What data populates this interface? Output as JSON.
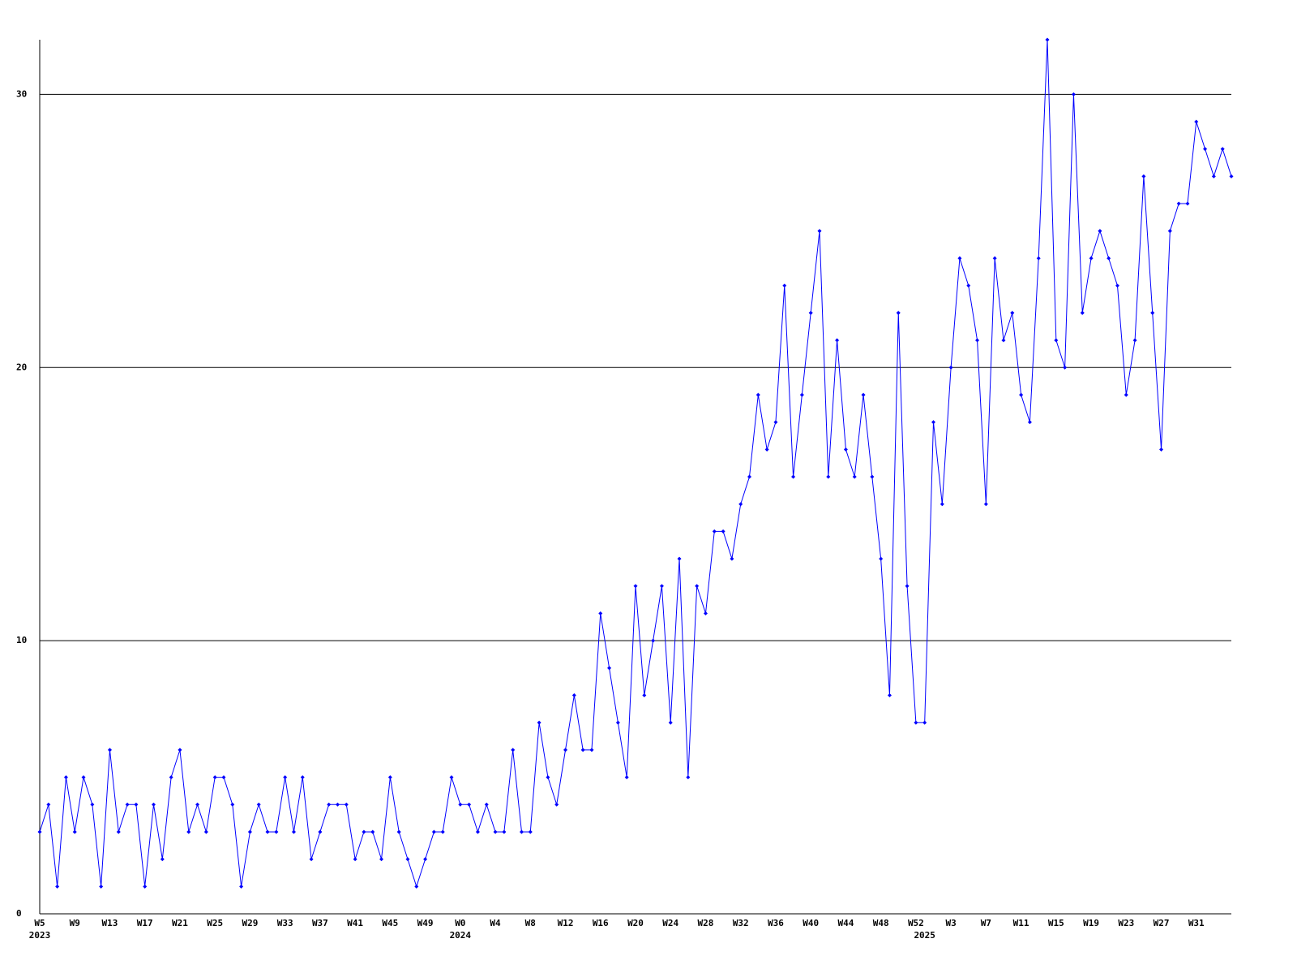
{
  "chart_data": {
    "type": "line",
    "categories": [
      "W5",
      null,
      null,
      null,
      "W9",
      null,
      null,
      null,
      "W13",
      null,
      null,
      null,
      "W17",
      null,
      null,
      null,
      "W21",
      null,
      null,
      null,
      "W25",
      null,
      null,
      null,
      "W29",
      null,
      null,
      null,
      "W33",
      null,
      null,
      null,
      "W37",
      null,
      null,
      null,
      "W41",
      null,
      null,
      null,
      "W45",
      null,
      null,
      null,
      "W49",
      null,
      null,
      null,
      "W0",
      null,
      null,
      null,
      "W4",
      null,
      null,
      null,
      "W8",
      null,
      null,
      null,
      "W12",
      null,
      null,
      null,
      "W16",
      null,
      null,
      null,
      "W20",
      null,
      null,
      null,
      "W24",
      null,
      null,
      null,
      "W28",
      null,
      null,
      null,
      "W32",
      null,
      null,
      null,
      "W36",
      null,
      null,
      null,
      "W40",
      null,
      null,
      null,
      "W44",
      null,
      null,
      null,
      "W48",
      null,
      null,
      null,
      "W52",
      null,
      null,
      null,
      "W3",
      null,
      null,
      null,
      "W7",
      null,
      null,
      null,
      "W11",
      null,
      null,
      null,
      "W15",
      null,
      null,
      null,
      "W19",
      null,
      null,
      null,
      "W23",
      null,
      null,
      null,
      "W27",
      null,
      null,
      null,
      "W31",
      null,
      null,
      null,
      null
    ],
    "year_labels": [
      "2023",
      null,
      null,
      null,
      null,
      null,
      null,
      null,
      null,
      null,
      null,
      null,
      null,
      null,
      null,
      null,
      null,
      null,
      null,
      null,
      null,
      null,
      null,
      null,
      null,
      null,
      null,
      null,
      null,
      null,
      null,
      null,
      null,
      null,
      null,
      null,
      null,
      null,
      null,
      null,
      null,
      null,
      null,
      null,
      null,
      null,
      null,
      null,
      "2024",
      null,
      null,
      null,
      null,
      null,
      null,
      null,
      null,
      null,
      null,
      null,
      null,
      null,
      null,
      null,
      null,
      null,
      null,
      null,
      null,
      null,
      null,
      null,
      null,
      null,
      null,
      null,
      null,
      null,
      null,
      null,
      null,
      null,
      null,
      null,
      null,
      null,
      null,
      null,
      null,
      null,
      null,
      null,
      null,
      null,
      null,
      null,
      null,
      null,
      null,
      null,
      null,
      "2025",
      null,
      null,
      null,
      null,
      null,
      null,
      null,
      null,
      null,
      null,
      null,
      null,
      null,
      null,
      null,
      null,
      null,
      null,
      null,
      null,
      null,
      null,
      null,
      null,
      null,
      null,
      null,
      null,
      null,
      null,
      null,
      null,
      null,
      null,
      null
    ],
    "series": [
      {
        "color": "#0000ff",
        "values": [
          3,
          4,
          1,
          5,
          3,
          5,
          4,
          1,
          6,
          3,
          4,
          4,
          1,
          4,
          2,
          5,
          6,
          3,
          4,
          3,
          5,
          5,
          4,
          1,
          3,
          4,
          3,
          3,
          5,
          3,
          5,
          2,
          3,
          4,
          4,
          4,
          2,
          3,
          3,
          2,
          5,
          3,
          2,
          1,
          2,
          3,
          3,
          5,
          4,
          4,
          3,
          4,
          3,
          3,
          6,
          3,
          3,
          7,
          5,
          4,
          6,
          8,
          6,
          6,
          11,
          9,
          7,
          5,
          12,
          8,
          10,
          12,
          7,
          13,
          5,
          12,
          11,
          14,
          14,
          13,
          15,
          16,
          19,
          17,
          18,
          23,
          16,
          19,
          22,
          25,
          16,
          21,
          17,
          16,
          19,
          16,
          13,
          8,
          22,
          12,
          7,
          7,
          18,
          15,
          20,
          24,
          23,
          21,
          15,
          24,
          21,
          22,
          19,
          18,
          24,
          32,
          21,
          20,
          30,
          22,
          24,
          25,
          24,
          23,
          19,
          21,
          27,
          22,
          17,
          25,
          26,
          26,
          29,
          28,
          27,
          28,
          27
        ]
      }
    ],
    "ylim": [
      0,
      32
    ],
    "yticks": [
      0,
      10,
      20,
      30
    ],
    "grid": true
  }
}
